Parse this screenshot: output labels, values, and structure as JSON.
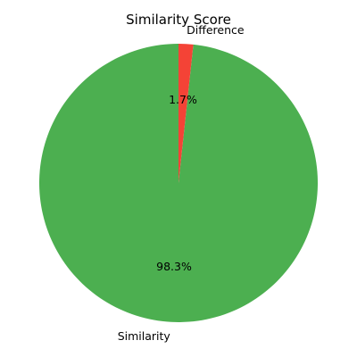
{
  "chart_data": {
    "type": "pie",
    "title": "Similarity Score",
    "slices": [
      {
        "label": "Similarity",
        "value": 98.3,
        "percent_label": "98.3%",
        "color": "#4caf50"
      },
      {
        "label": "Difference",
        "value": 1.7,
        "percent_label": "1.7%",
        "color": "#f44336"
      }
    ],
    "start_angle_deg": 90,
    "counterclockwise": true
  }
}
